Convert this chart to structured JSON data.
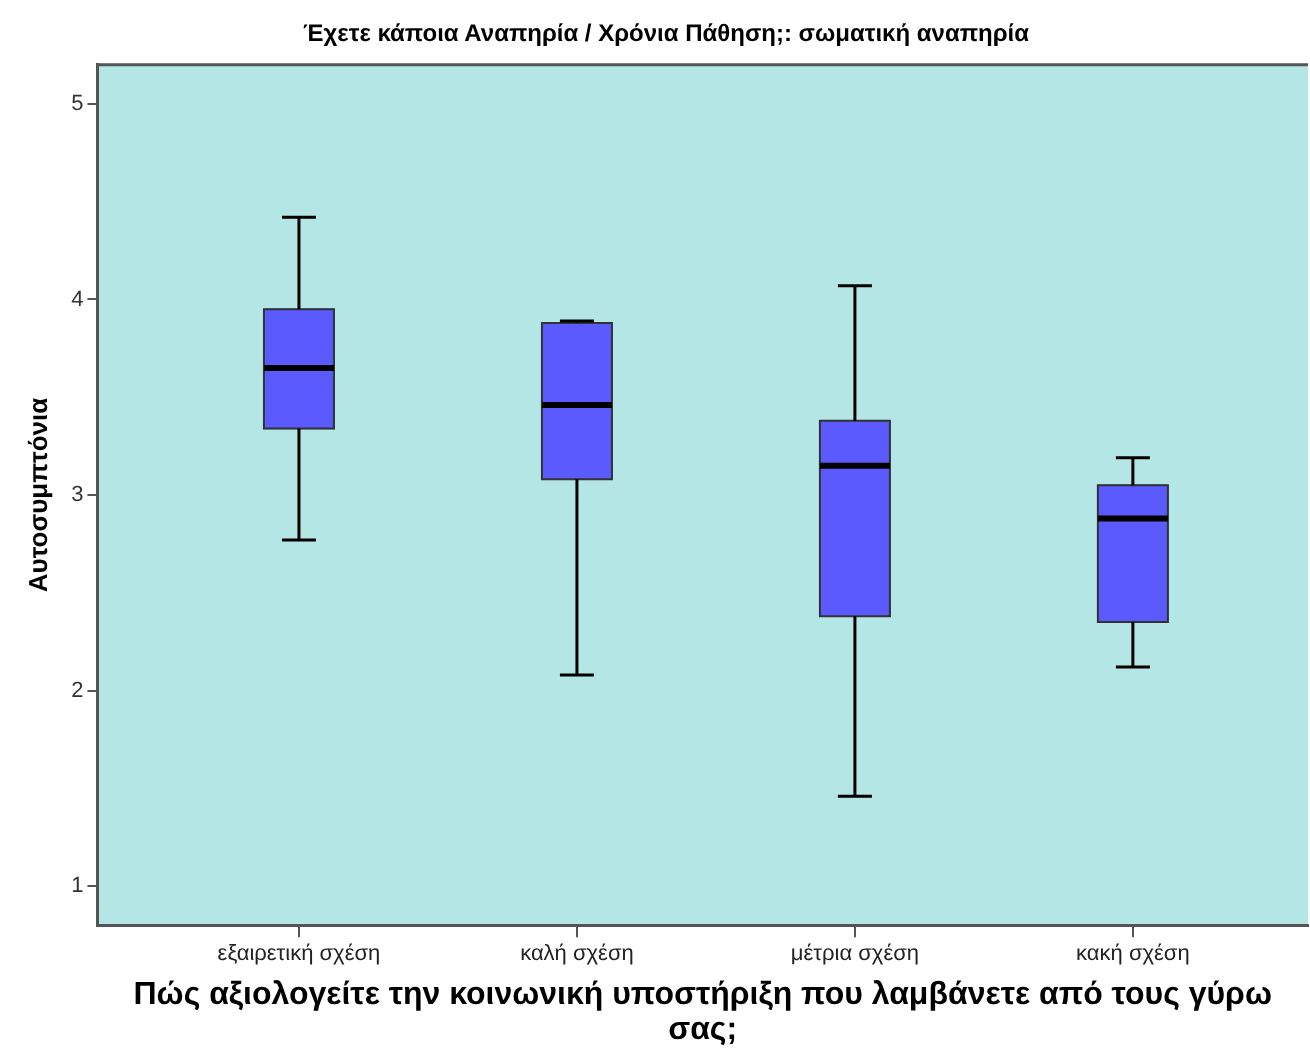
{
  "chart_data": {
    "type": "box",
    "title": "Έχετε κάποια Αναπηρία / Χρόνια Πάθηση;: σωματική αναπηρία",
    "xlabel": "Πώς αξιολογείτε την κοινωνική υποστήριξη που λαμβάνετε από τους γύρω σας;",
    "ylabel": "Αυτοσυμπτόνια",
    "categories": [
      "εξαιρετική σχέση",
      "καλή σχέση",
      "μέτρια σχέση",
      "κακή σχέση"
    ],
    "color": "#5a5aff",
    "boxes": [
      {
        "low": 2.77,
        "q1": 3.34,
        "median": 3.65,
        "q3": 3.95,
        "high": 4.42
      },
      {
        "low": 2.08,
        "q1": 3.08,
        "median": 3.46,
        "q3": 3.88,
        "high": 3.89
      },
      {
        "low": 1.46,
        "q1": 2.38,
        "median": 3.15,
        "q3": 3.38,
        "high": 4.07
      },
      {
        "low": 2.12,
        "q1": 2.35,
        "median": 2.88,
        "q3": 3.05,
        "high": 3.19
      }
    ],
    "ylim": [
      0.8,
      5.2
    ],
    "yticks": [
      1,
      2,
      3,
      4,
      5
    ],
    "grid": false,
    "legend": false
  }
}
